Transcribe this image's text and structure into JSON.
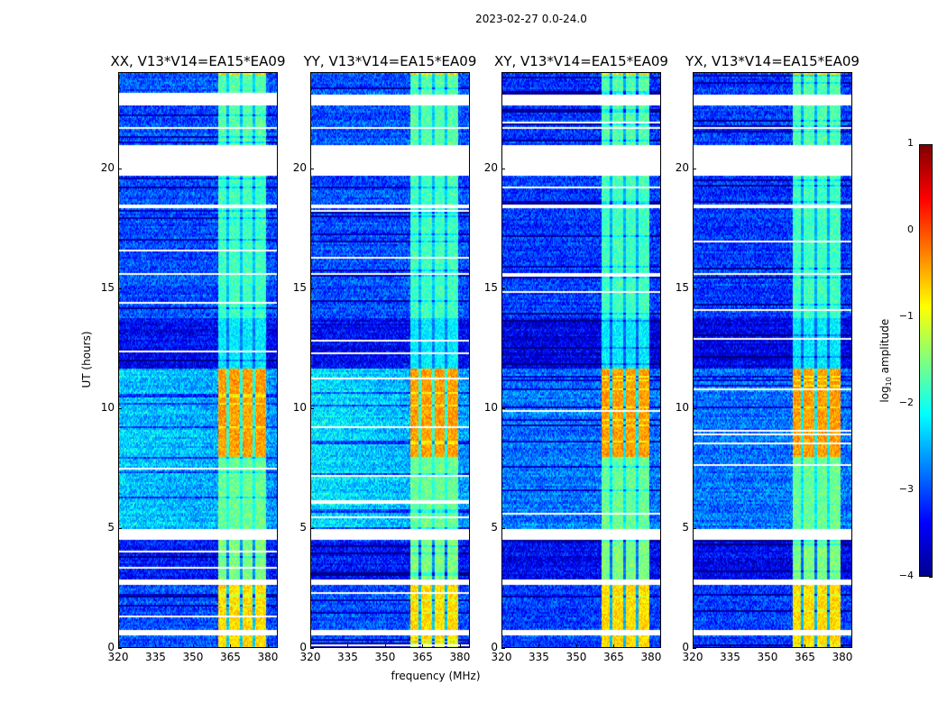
{
  "chart_data": {
    "type": "heatmap",
    "title": "2023-02-27 0.0-24.0",
    "xlabel": "frequency (MHz)",
    "ylabel": "UT (hours)",
    "xlim": [
      320,
      384
    ],
    "ylim": [
      0,
      24
    ],
    "xticks": [
      320,
      335,
      350,
      365,
      380
    ],
    "yticks": [
      0,
      5,
      10,
      15,
      20
    ],
    "panels": [
      {
        "title": "XX, V13*V14=EA15*EA09",
        "bg_offset": 0.0,
        "mid_offset": 0.35
      },
      {
        "title": "YY, V13*V14=EA15*EA09",
        "bg_offset": 0.0,
        "mid_offset": 0.5
      },
      {
        "title": "XY, V13*V14=EA15*EA09",
        "bg_offset": -0.1,
        "mid_offset": 0.0
      },
      {
        "title": "YX, V13*V14=EA15*EA09",
        "bg_offset": -0.1,
        "mid_offset": 0.0
      }
    ],
    "band_mhz": [
      360,
      379.5
    ],
    "band_gaps_mhz": [
      364,
      369.5,
      374.5
    ],
    "segments_hours": [
      {
        "start": 0,
        "end": 2.6,
        "bg": -3.0,
        "band": -0.7
      },
      {
        "start": 2.6,
        "end": 4.9,
        "bg": -3.3,
        "band": -1.5
      },
      {
        "start": 4.9,
        "end": 8.0,
        "bg": -2.7,
        "band": -1.6
      },
      {
        "start": 8.0,
        "end": 11.7,
        "bg": -2.7,
        "band": -0.4
      },
      {
        "start": 11.7,
        "end": 13.8,
        "bg": -3.4,
        "band": -2.2
      },
      {
        "start": 13.8,
        "end": 19.7,
        "bg": -3.0,
        "band": -1.8
      },
      {
        "start": 19.7,
        "end": 24,
        "bg": -3.0,
        "band": -1.7
      }
    ],
    "flagged_hours": [
      [
        0.5,
        0.75
      ],
      [
        2.65,
        2.9
      ],
      [
        4.5,
        4.95
      ],
      [
        19.75,
        21.05
      ],
      [
        22.7,
        23.1
      ],
      [
        18.4,
        18.5
      ],
      [
        15.6,
        15.65
      ],
      [
        21.7,
        21.8
      ]
    ],
    "colorbar": {
      "label": "log10 amplitude",
      "label_main": "log",
      "label_sub": "10",
      "label_rest": " amplitude",
      "colormap": "jet",
      "range": [
        -4,
        1
      ],
      "ticks": [
        1,
        0,
        -1,
        -2,
        -3,
        -4
      ],
      "tick_labels": [
        "1",
        "0",
        "−1",
        "−2",
        "−3",
        "−4"
      ]
    }
  }
}
